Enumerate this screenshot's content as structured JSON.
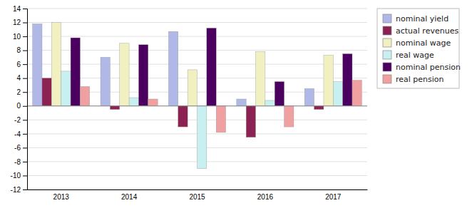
{
  "chart_data": {
    "type": "bar",
    "categories": [
      "2013",
      "2014",
      "2015",
      "2016",
      "2017"
    ],
    "series": [
      {
        "name": "nominal yield",
        "color": "#b0b8e8",
        "values": [
          11.8,
          7.0,
          10.7,
          1.0,
          2.5
        ]
      },
      {
        "name": "actual revenues",
        "color": "#8b2252",
        "values": [
          4.0,
          -0.5,
          -3.0,
          -4.5,
          -0.5
        ]
      },
      {
        "name": "nominal wage",
        "color": "#f0f0c0",
        "values": [
          12.0,
          9.0,
          5.2,
          7.8,
          7.3
        ]
      },
      {
        "name": "real wage",
        "color": "#c8f0f0",
        "values": [
          5.0,
          1.2,
          -9.0,
          0.8,
          3.5
        ]
      },
      {
        "name": "nominal pension",
        "color": "#4b0060",
        "values": [
          9.8,
          8.8,
          11.2,
          3.5,
          7.5
        ]
      },
      {
        "name": "real pension",
        "color": "#f0a0a0",
        "values": [
          2.8,
          1.0,
          -3.8,
          -3.0,
          3.7
        ]
      }
    ],
    "ylim": [
      -12,
      14
    ],
    "yticks": [
      -12,
      -10,
      -8,
      -6,
      -4,
      -2,
      0,
      2,
      4,
      6,
      8,
      10,
      12,
      14
    ],
    "grid": true,
    "legend": "right"
  }
}
